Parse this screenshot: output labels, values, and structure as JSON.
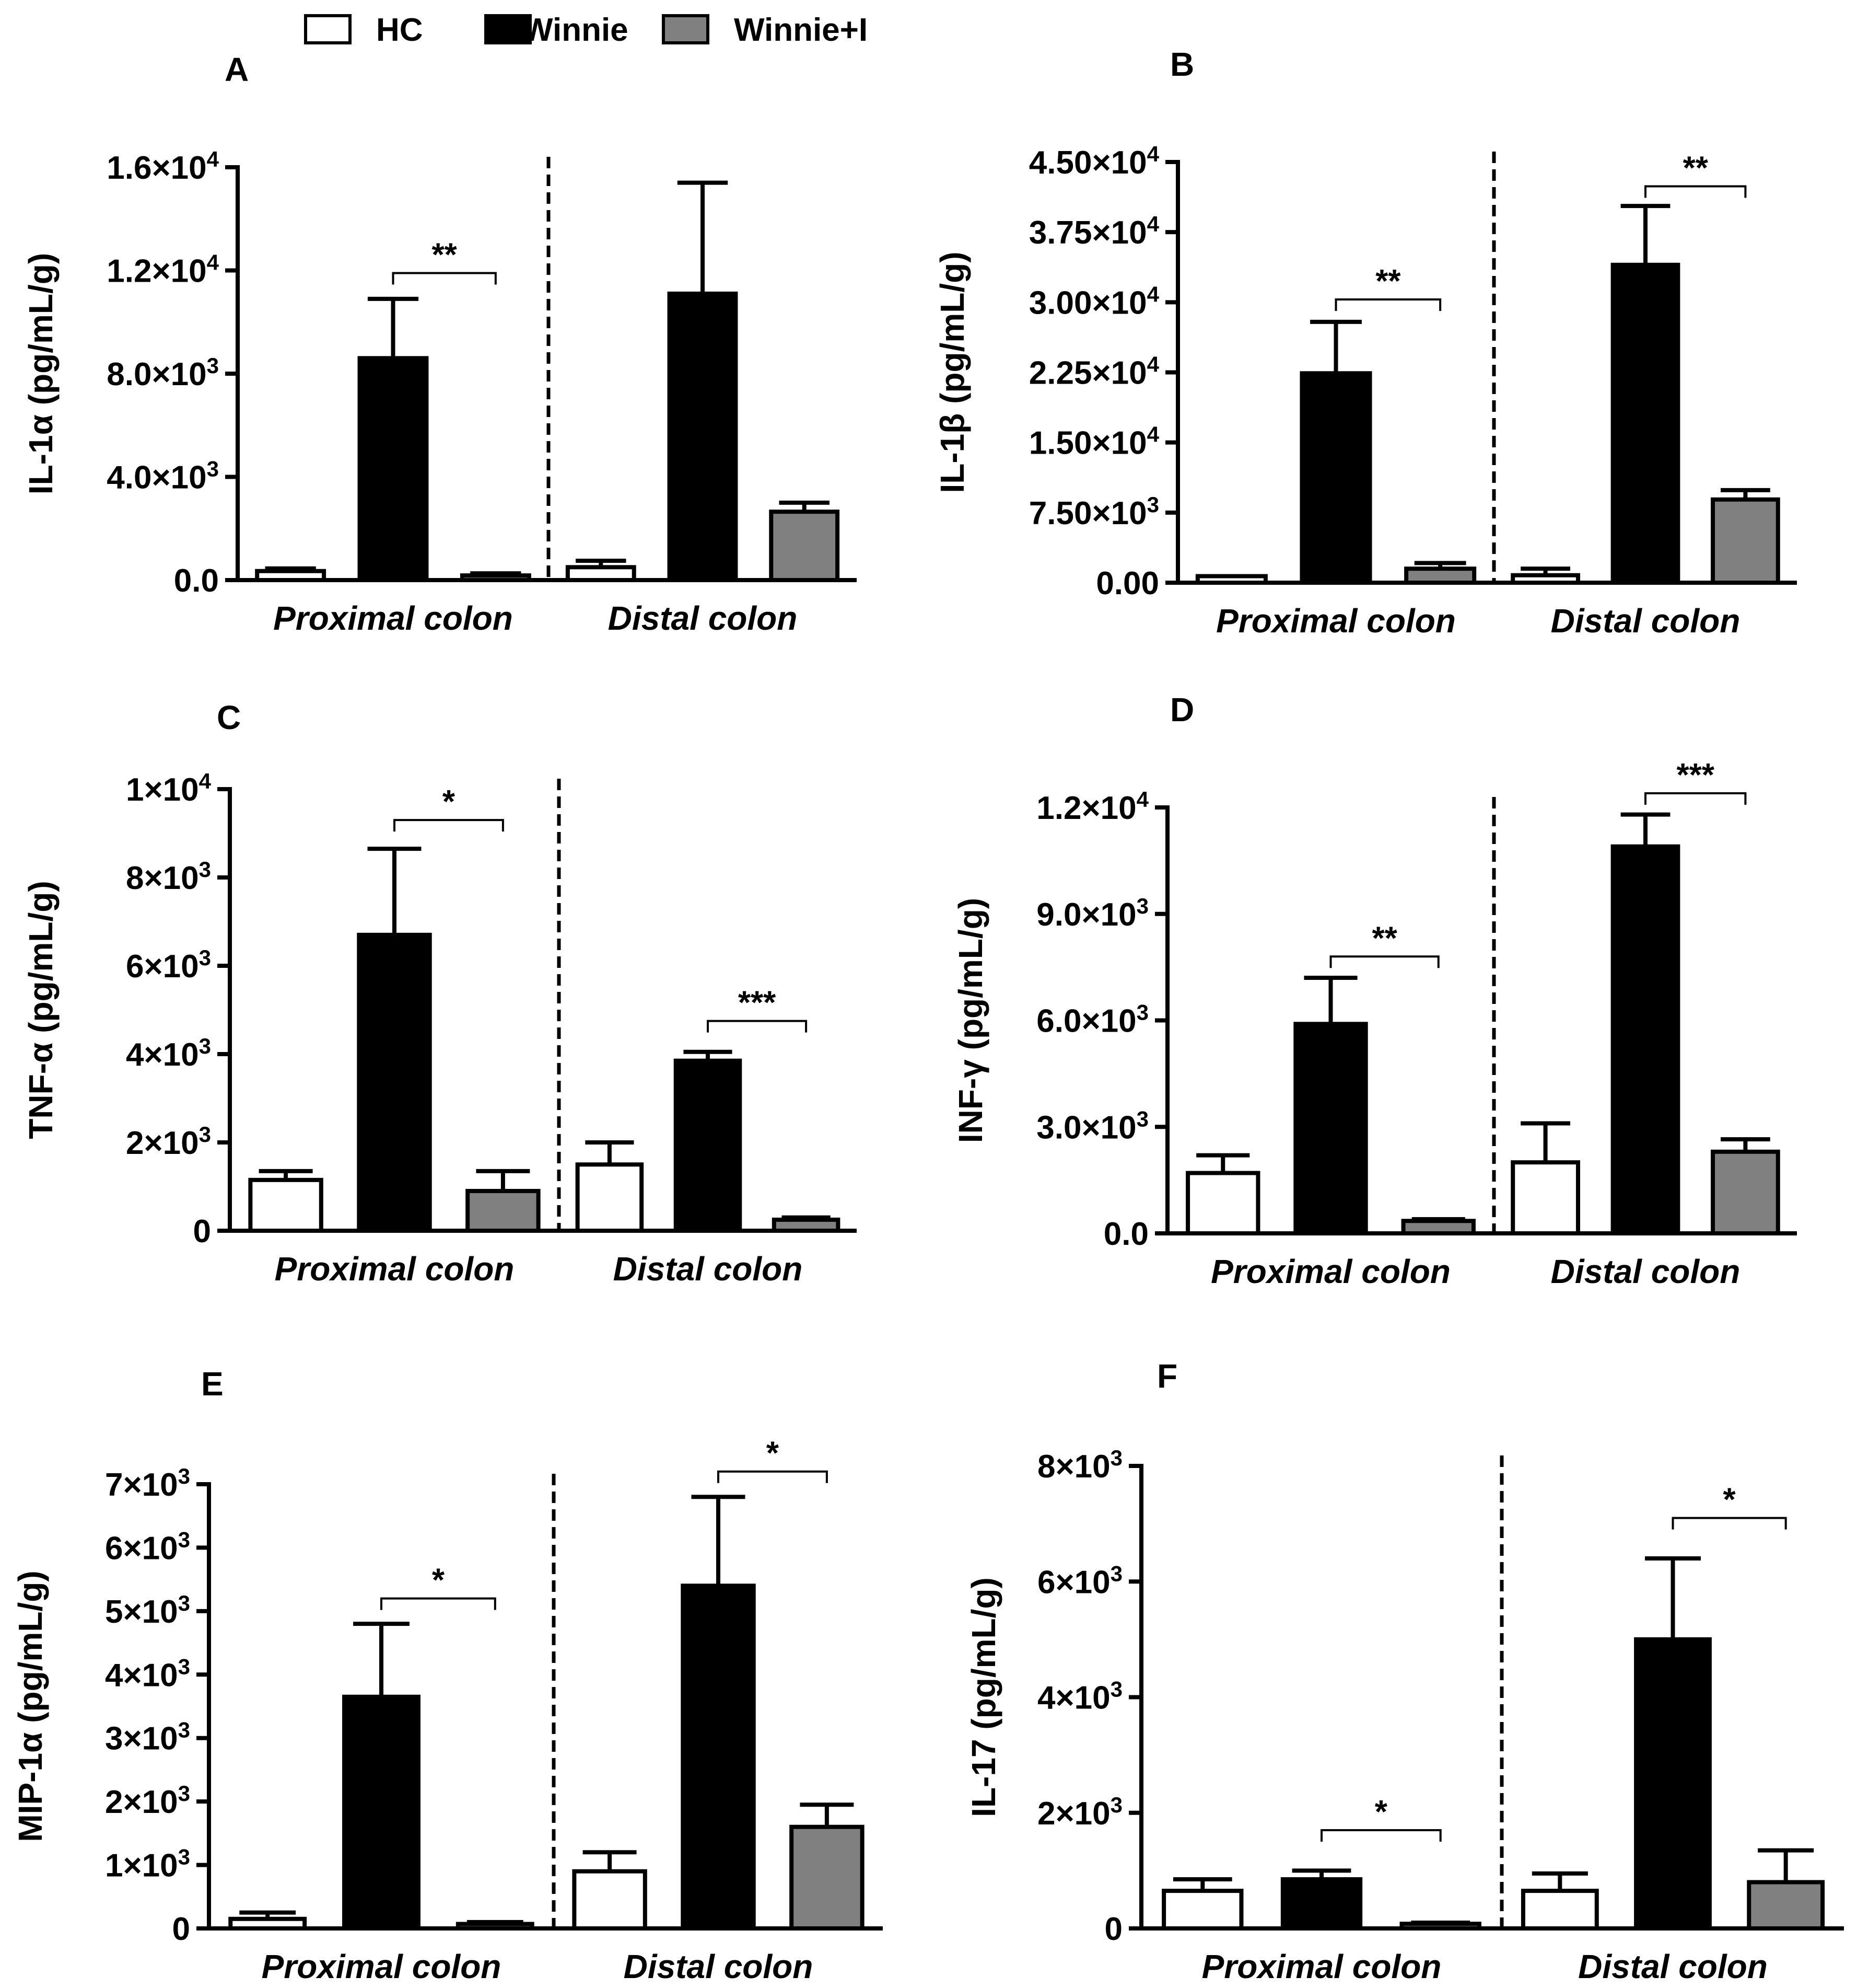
{
  "legend": [
    {
      "label": "HC",
      "fill": "#ffffff"
    },
    {
      "label": "Winnie",
      "fill": "#000000"
    },
    {
      "label": "Winnie+I",
      "fill": "#808080"
    }
  ],
  "chart_data": [
    {
      "type": "bar",
      "panel": "A",
      "title": "A",
      "ylabel": "IL-1α (pg/mL/g)",
      "yticks": [
        {
          "v": 0,
          "m": "0.0",
          "e": ""
        },
        {
          "v": 4000,
          "m": "4.0×10",
          "e": "3"
        },
        {
          "v": 8000,
          "m": "8.0×10",
          "e": "3"
        },
        {
          "v": 12000,
          "m": "1.2×10",
          "e": "4"
        },
        {
          "v": 16000,
          "m": "1.6×10",
          "e": "4"
        }
      ],
      "ylim": [
        0,
        16000
      ],
      "groups": [
        {
          "name": "Proximal colon",
          "bars": [
            {
              "series": "HC",
              "value": 350,
              "err": 450
            },
            {
              "series": "Winnie",
              "value": 8600,
              "err": 10900
            },
            {
              "series": "Winnie+I",
              "value": 180,
              "err": 260
            }
          ]
        },
        {
          "name": "Distal colon",
          "bars": [
            {
              "series": "HC",
              "value": 500,
              "err": 750
            },
            {
              "series": "Winnie",
              "value": 11100,
              "err": 15400
            },
            {
              "series": "Winnie+I",
              "value": 2650,
              "err": 3000
            }
          ]
        }
      ],
      "significance": [
        {
          "group": 0,
          "from": 1,
          "to": 2,
          "label": "**",
          "y": 11900
        }
      ]
    },
    {
      "type": "bar",
      "panel": "B",
      "title": "B",
      "ylabel": "IL-1β (pg/mL/g)",
      "yticks": [
        {
          "v": 0,
          "m": "0.00",
          "e": ""
        },
        {
          "v": 7500,
          "m": "7.50×10",
          "e": "3"
        },
        {
          "v": 15000,
          "m": "1.50×10",
          "e": "4"
        },
        {
          "v": 22500,
          "m": "2.25×10",
          "e": "4"
        },
        {
          "v": 30000,
          "m": "3.00×10",
          "e": "4"
        },
        {
          "v": 37500,
          "m": "3.75×10",
          "e": "4"
        },
        {
          "v": 45000,
          "m": "4.50×10",
          "e": "4"
        }
      ],
      "ylim": [
        0,
        45000
      ],
      "groups": [
        {
          "name": "Proximal colon",
          "bars": [
            {
              "series": "HC",
              "value": 700,
              "err": 700
            },
            {
              "series": "Winnie",
              "value": 22400,
              "err": 27900
            },
            {
              "series": "Winnie+I",
              "value": 1500,
              "err": 2100
            }
          ]
        },
        {
          "name": "Distal colon",
          "bars": [
            {
              "series": "HC",
              "value": 800,
              "err": 1500
            },
            {
              "series": "Winnie",
              "value": 34000,
              "err": 40300
            },
            {
              "series": "Winnie+I",
              "value": 8900,
              "err": 9900
            }
          ]
        }
      ],
      "significance": [
        {
          "group": 0,
          "from": 1,
          "to": 2,
          "label": "**",
          "y": 30300
        },
        {
          "group": 1,
          "from": 1,
          "to": 2,
          "label": "**",
          "y": 42400
        }
      ]
    },
    {
      "type": "bar",
      "panel": "C",
      "title": "C",
      "ylabel": "TNF-α (pg/mL/g)",
      "yticks": [
        {
          "v": 0,
          "m": "0",
          "e": ""
        },
        {
          "v": 2000,
          "m": "2×10",
          "e": "3"
        },
        {
          "v": 4000,
          "m": "4×10",
          "e": "3"
        },
        {
          "v": 6000,
          "m": "6×10",
          "e": "3"
        },
        {
          "v": 8000,
          "m": "8×10",
          "e": "3"
        },
        {
          "v": 10000,
          "m": "1×10",
          "e": "4"
        }
      ],
      "ylim": [
        0,
        10000
      ],
      "groups": [
        {
          "name": "Proximal colon",
          "bars": [
            {
              "series": "HC",
              "value": 1150,
              "err": 1350
            },
            {
              "series": "Winnie",
              "value": 6700,
              "err": 8650
            },
            {
              "series": "Winnie+I",
              "value": 900,
              "err": 1350
            }
          ]
        },
        {
          "name": "Distal colon",
          "bars": [
            {
              "series": "HC",
              "value": 1500,
              "err": 2000
            },
            {
              "series": "Winnie",
              "value": 3850,
              "err": 4050
            },
            {
              "series": "Winnie+I",
              "value": 250,
              "err": 300
            }
          ]
        }
      ],
      "significance": [
        {
          "group": 0,
          "from": 1,
          "to": 2,
          "label": "*",
          "y": 9300
        },
        {
          "group": 1,
          "from": 1,
          "to": 2,
          "label": "***",
          "y": 4750
        }
      ]
    },
    {
      "type": "bar",
      "panel": "D",
      "title": "D",
      "ylabel": "INF-γ (pg/mL/g)",
      "yticks": [
        {
          "v": 0,
          "m": "0.0",
          "e": ""
        },
        {
          "v": 3000,
          "m": "3.0×10",
          "e": "3"
        },
        {
          "v": 6000,
          "m": "6.0×10",
          "e": "3"
        },
        {
          "v": 9000,
          "m": "9.0×10",
          "e": "3"
        },
        {
          "v": 12000,
          "m": "1.2×10",
          "e": "4"
        }
      ],
      "ylim": [
        0,
        12000
      ],
      "groups": [
        {
          "name": "Proximal colon",
          "bars": [
            {
              "series": "HC",
              "value": 1700,
              "err": 2200
            },
            {
              "series": "Winnie",
              "value": 5900,
              "err": 7200
            },
            {
              "series": "Winnie+I",
              "value": 350,
              "err": 400
            }
          ]
        },
        {
          "name": "Distal colon",
          "bars": [
            {
              "series": "HC",
              "value": 2000,
              "err": 3100
            },
            {
              "series": "Winnie",
              "value": 10900,
              "err": 11800
            },
            {
              "series": "Winnie+I",
              "value": 2300,
              "err": 2650
            }
          ]
        }
      ],
      "significance": [
        {
          "group": 0,
          "from": 1,
          "to": 2,
          "label": "**",
          "y": 7800
        },
        {
          "group": 1,
          "from": 1,
          "to": 2,
          "label": "***",
          "y": 12400
        }
      ]
    },
    {
      "type": "bar",
      "panel": "E",
      "title": "E",
      "ylabel": "MIP-1α (pg/mL/g)",
      "yticks": [
        {
          "v": 0,
          "m": "0",
          "e": ""
        },
        {
          "v": 1000,
          "m": "1×10",
          "e": "3"
        },
        {
          "v": 2000,
          "m": "2×10",
          "e": "3"
        },
        {
          "v": 3000,
          "m": "3×10",
          "e": "3"
        },
        {
          "v": 4000,
          "m": "4×10",
          "e": "3"
        },
        {
          "v": 5000,
          "m": "5×10",
          "e": "3"
        },
        {
          "v": 6000,
          "m": "6×10",
          "e": "3"
        },
        {
          "v": 7000,
          "m": "7×10",
          "e": "3"
        }
      ],
      "ylim": [
        0,
        7000
      ],
      "groups": [
        {
          "name": "Proximal colon",
          "bars": [
            {
              "series": "HC",
              "value": 150,
              "err": 250
            },
            {
              "series": "Winnie",
              "value": 3650,
              "err": 4800
            },
            {
              "series": "Winnie+I",
              "value": 70,
              "err": 100
            }
          ]
        },
        {
          "name": "Distal colon",
          "bars": [
            {
              "series": "HC",
              "value": 900,
              "err": 1200
            },
            {
              "series": "Winnie",
              "value": 5400,
              "err": 6800
            },
            {
              "series": "Winnie+I",
              "value": 1600,
              "err": 1950
            }
          ]
        }
      ],
      "significance": [
        {
          "group": 0,
          "from": 1,
          "to": 2,
          "label": "*",
          "y": 5200
        },
        {
          "group": 1,
          "from": 1,
          "to": 2,
          "label": "*",
          "y": 7200
        }
      ]
    },
    {
      "type": "bar",
      "panel": "F",
      "title": "F",
      "ylabel": "IL-17 (pg/mL/g)",
      "yticks": [
        {
          "v": 0,
          "m": "0",
          "e": ""
        },
        {
          "v": 2000,
          "m": "2×10",
          "e": "3"
        },
        {
          "v": 4000,
          "m": "4×10",
          "e": "3"
        },
        {
          "v": 6000,
          "m": "6×10",
          "e": "3"
        },
        {
          "v": 8000,
          "m": "8×10",
          "e": "3"
        }
      ],
      "ylim": [
        0,
        8000
      ],
      "groups": [
        {
          "name": "Proximal colon",
          "bars": [
            {
              "series": "HC",
              "value": 650,
              "err": 850
            },
            {
              "series": "Winnie",
              "value": 850,
              "err": 1000
            },
            {
              "series": "Winnie+I",
              "value": 80,
              "err": 100
            }
          ]
        },
        {
          "name": "Distal colon",
          "bars": [
            {
              "series": "HC",
              "value": 650,
              "err": 950
            },
            {
              "series": "Winnie",
              "value": 5000,
              "err": 6400
            },
            {
              "series": "Winnie+I",
              "value": 800,
              "err": 1350
            }
          ]
        }
      ],
      "significance": [
        {
          "group": 0,
          "from": 1,
          "to": 2,
          "label": "*",
          "y": 1700
        },
        {
          "group": 1,
          "from": 1,
          "to": 2,
          "label": "*",
          "y": 7100
        }
      ]
    }
  ]
}
